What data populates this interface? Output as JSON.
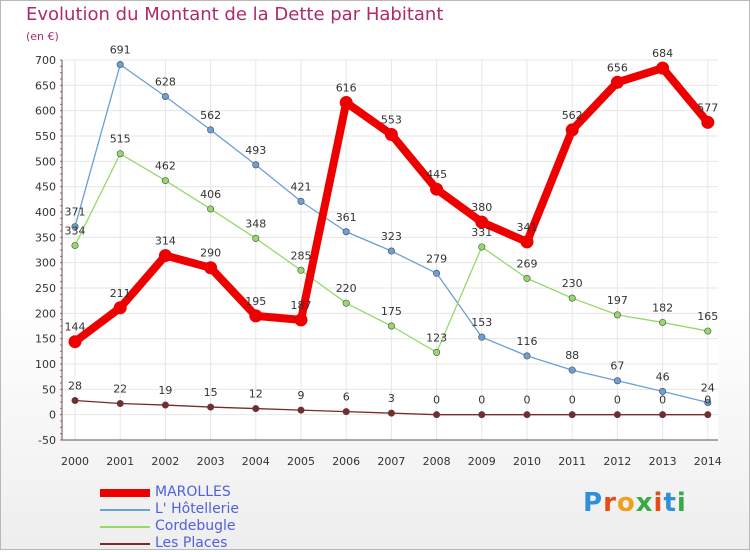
{
  "title": "Evolution du Montant de la Dette par Habitant",
  "unit": "(en €)",
  "logo": {
    "text": "Proxiti",
    "colors": [
      "#2f8fd8",
      "#e84b1a",
      "#f0a020",
      "#3aa845",
      "#e84b1a",
      "#2f8fd8",
      "#3aa845"
    ]
  },
  "chart_data": {
    "type": "line",
    "title": "Evolution du Montant de la Dette par Habitant",
    "ylabel": "(en €)",
    "xlabel": "",
    "ylim": [
      -50,
      700
    ],
    "yticks": [
      -50,
      0,
      50,
      100,
      150,
      200,
      250,
      300,
      350,
      400,
      450,
      500,
      550,
      600,
      650,
      700
    ],
    "categories": [
      "2000",
      "2001",
      "2002",
      "2003",
      "2004",
      "2005",
      "2006",
      "2007",
      "2008",
      "2009",
      "2010",
      "2011",
      "2012",
      "2013",
      "2014"
    ],
    "series": [
      {
        "name": "MAROLLES",
        "color": "#ee0000",
        "emphasis": true,
        "values": [
          144,
          211,
          314,
          290,
          195,
          187,
          616,
          553,
          445,
          380,
          341,
          562,
          656,
          684,
          577
        ]
      },
      {
        "name": "L' Hôtellerie",
        "color": "#6b9fd6",
        "emphasis": false,
        "values": [
          371,
          691,
          628,
          562,
          493,
          421,
          361,
          323,
          279,
          153,
          116,
          88,
          67,
          46,
          24
        ]
      },
      {
        "name": "Cordebugle",
        "color": "#96d96a",
        "emphasis": false,
        "values": [
          334,
          515,
          462,
          406,
          348,
          285,
          220,
          175,
          123,
          331,
          269,
          230,
          197,
          182,
          165
        ]
      },
      {
        "name": "Les Places",
        "color": "#7a2a2a",
        "emphasis": false,
        "values": [
          28,
          22,
          19,
          15,
          12,
          9,
          6,
          3,
          0,
          0,
          0,
          0,
          0,
          0,
          0
        ]
      }
    ],
    "legend_position": "bottom-left"
  }
}
